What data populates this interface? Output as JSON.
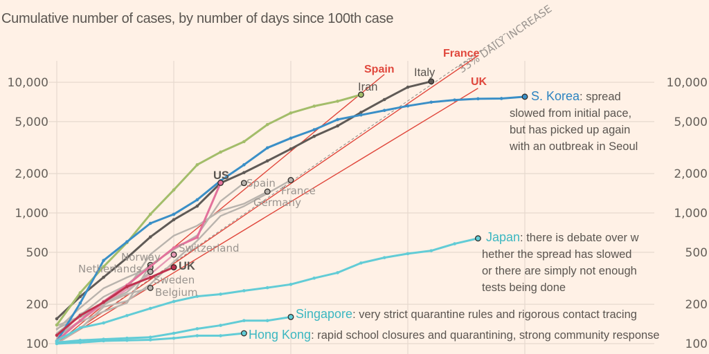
{
  "header": {
    "subtitle": "Cumulative number of cases, by number of days since 100th case"
  },
  "chart_data": {
    "type": "line",
    "title": "",
    "subtitle": "Cumulative number of cases, by number of days since 100th case",
    "xlabel": "Number of days since 100th case",
    "ylabel": "Cumulative number of cases",
    "yscale": "log",
    "ylim": [
      100,
      10000
    ],
    "xlim": [
      0,
      20
    ],
    "y_ticks": [
      100,
      200,
      500,
      1000,
      2000,
      5000,
      10000
    ],
    "y_tick_labels": [
      "100",
      "200",
      "500",
      "1,000",
      "2,000",
      "5,000",
      "10,000"
    ],
    "x_ticks": [
      0,
      5,
      10,
      15,
      20
    ],
    "grid": true,
    "trend_line": {
      "label": "33% DAILY INCREASE",
      "start": 100,
      "growth_rate": 0.33
    },
    "series": [
      {
        "name": "Italy",
        "group": "highlight",
        "color": "#5f5a56",
        "label_color": "#5f5a56",
        "x": [
          0,
          1,
          2,
          3,
          4,
          5,
          6,
          7,
          8,
          9,
          10,
          11,
          12,
          13,
          14,
          15,
          16
        ],
        "values": [
          155,
          229,
          322,
          453,
          655,
          888,
          1128,
          1694,
          2036,
          2502,
          3089,
          3858,
          4636,
          5883,
          7375,
          9172,
          10149
        ]
      },
      {
        "name": "Iran",
        "group": "highlight",
        "color": "#a3bd6a",
        "label_color": "#8a9b3d",
        "x": [
          0,
          1,
          2,
          3,
          4,
          5,
          6,
          7,
          8,
          9,
          10,
          11,
          12,
          13
        ],
        "values": [
          139,
          245,
          388,
          593,
          978,
          1501,
          2336,
          2922,
          3513,
          4747,
          5823,
          6566,
          7161,
          8042
        ]
      },
      {
        "name": "S. Korea",
        "group": "highlight",
        "color": "#3a8fc7",
        "label_color": "#2b83c0",
        "x": [
          0,
          1,
          2,
          3,
          4,
          5,
          6,
          7,
          8,
          9,
          10,
          11,
          12,
          13,
          14,
          15,
          16,
          17,
          18,
          19,
          20
        ],
        "values": [
          104,
          204,
          433,
          602,
          833,
          977,
          1261,
          1766,
          2337,
          3150,
          3736,
          4335,
          5186,
          5621,
          6088,
          6593,
          7041,
          7314,
          7478,
          7513,
          7755
        ],
        "annotation": "spread slowed from initial pace, but has picked up again with an outbreak in Seoul"
      },
      {
        "name": "US",
        "group": "highlight",
        "color": "#e2719b",
        "label_color": "#d9568a",
        "x": [
          0,
          1,
          2,
          3,
          4,
          5,
          6,
          7
        ],
        "values": [
          105,
          150,
          210,
          280,
          390,
          540,
          650,
          1700
        ]
      },
      {
        "name": "UK",
        "group": "highlight",
        "color": "#c0324f",
        "label_color": "#b83055",
        "x": [
          0,
          1,
          2,
          3,
          4,
          5
        ],
        "values": [
          116,
          164,
          207,
          273,
          321,
          384
        ]
      },
      {
        "name": "Japan",
        "group": "highlight",
        "color": "#62ccd6",
        "label_color": "#3bb7c1",
        "x": [
          0,
          1,
          2,
          3,
          4,
          5,
          6,
          7,
          8,
          9,
          10,
          11,
          12,
          13,
          14,
          15,
          16,
          17,
          18
        ],
        "values": [
          105,
          132,
          144,
          164,
          186,
          210,
          230,
          239,
          254,
          268,
          284,
          317,
          349,
          414,
          455,
          488,
          514,
          581,
          639
        ],
        "annotation": "there is debate over whether the spread has slowed or there are simply not enough tests being done"
      },
      {
        "name": "Singapore",
        "group": "highlight",
        "color": "#62ccd6",
        "label_color": "#3bb7c1",
        "x": [
          0,
          1,
          2,
          3,
          4,
          5,
          6,
          7,
          8,
          9,
          10
        ],
        "values": [
          102,
          106,
          108,
          110,
          112,
          120,
          130,
          138,
          150,
          150,
          160
        ],
        "annotation": "very strict quarantine rules and rigorous contact tracing"
      },
      {
        "name": "Hong Kong",
        "group": "highlight",
        "color": "#62ccd6",
        "label_color": "#3bb7c1",
        "x": [
          0,
          1,
          2,
          3,
          4,
          5,
          6,
          7,
          8
        ],
        "values": [
          100,
          102,
          105,
          106,
          107,
          110,
          115,
          115,
          120
        ],
        "annotation": "rapid school closures and quarantining, strong community response"
      },
      {
        "name": "Spain",
        "group": "secondary",
        "color": "#b9b3ad",
        "x": [
          0,
          1,
          2,
          3,
          4,
          5,
          6,
          7,
          8
        ],
        "values": [
          120,
          165,
          228,
          282,
          401,
          525,
          674,
          1231,
          1695
        ]
      },
      {
        "name": "France",
        "group": "secondary",
        "color": "#b9b3ad",
        "x": [
          0,
          1,
          2,
          3,
          4,
          5,
          6,
          7,
          8,
          9,
          10
        ],
        "values": [
          100,
          130,
          191,
          212,
          285,
          423,
          613,
          949,
          1126,
          1412,
          1784
        ]
      },
      {
        "name": "Germany",
        "group": "secondary",
        "color": "#b9b3ad",
        "x": [
          0,
          1,
          2,
          3,
          4,
          5,
          6,
          7,
          8,
          9
        ],
        "values": [
          130,
          159,
          196,
          262,
          482,
          670,
          799,
          1040,
          1176,
          1457
        ]
      },
      {
        "name": "Switzerland",
        "group": "secondary",
        "color": "#e69ab5",
        "x": [
          0,
          1,
          2,
          3,
          4,
          5
        ],
        "values": [
          114,
          150,
          200,
          260,
          340,
          480
        ]
      },
      {
        "name": "Norway",
        "group": "secondary",
        "color": "#b9b3ad",
        "x": [
          0,
          1,
          2,
          3,
          4
        ],
        "values": [
          113,
          147,
          176,
          205,
          400
        ]
      },
      {
        "name": "Netherlands",
        "group": "secondary",
        "color": "#b9b3ad",
        "x": [
          0,
          1,
          2,
          3,
          4
        ],
        "values": [
          128,
          188,
          265,
          321,
          382
        ]
      },
      {
        "name": "Sweden",
        "group": "secondary",
        "color": "#b9b3ad",
        "x": [
          0,
          1,
          2,
          3,
          4
        ],
        "values": [
          137,
          161,
          203,
          248,
          355
        ]
      },
      {
        "name": "Belgium",
        "group": "secondary",
        "color": "#b9b3ad",
        "x": [
          0,
          1,
          2,
          3,
          4
        ],
        "values": [
          109,
          169,
          200,
          239,
          267
        ]
      }
    ],
    "projection_lines": [
      {
        "name": "Spain",
        "color": "#e0473c",
        "from_x": 0,
        "from_value": 100,
        "to_x": 14,
        "to_value": 11500
      },
      {
        "name": "France",
        "color": "#e0473c",
        "from_x": 0,
        "from_value": 100,
        "to_x": 18,
        "to_value": 16000
      },
      {
        "name": "UK",
        "color": "#e0473c",
        "from_x": 0,
        "from_value": 100,
        "to_x": 18,
        "to_value": 9000
      }
    ],
    "labels": {
      "trend": "33% DAILY INCREASE",
      "red": [
        "Spain",
        "France",
        "UK"
      ]
    }
  }
}
